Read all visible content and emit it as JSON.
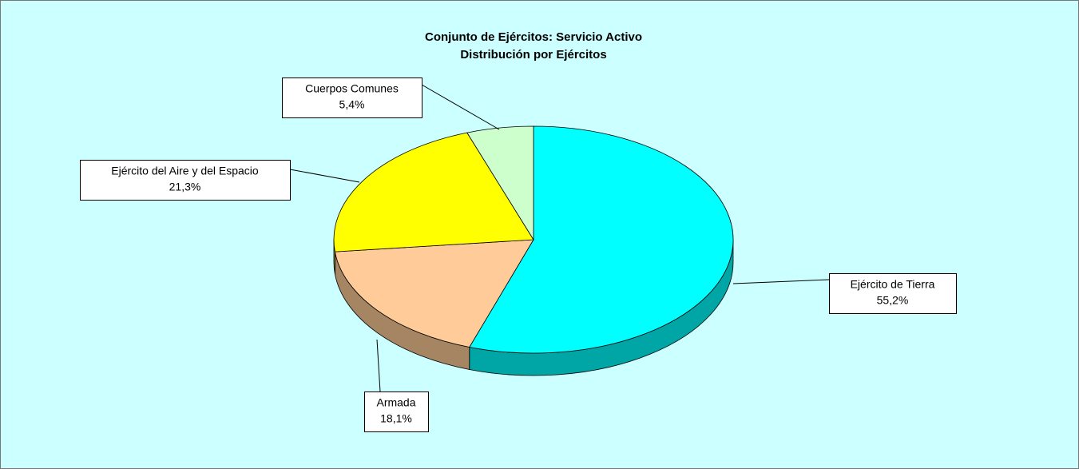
{
  "chart_data": {
    "type": "pie",
    "title": "Conjunto de Ejércitos: Servicio Activo",
    "subtitle": "Distribución por Ejércitos",
    "categories": [
      "Ejército de Tierra",
      "Armada",
      "Ejército del Aire y del Espacio",
      "Cuerpos Comunes"
    ],
    "values": [
      55.2,
      18.1,
      21.3,
      5.4
    ],
    "value_labels": [
      "55,2%",
      "18,1%",
      "21,3%",
      "5,4%"
    ],
    "colors": [
      "#00ffff",
      "#ffcc99",
      "#ffff00",
      "#ccffcc"
    ]
  }
}
